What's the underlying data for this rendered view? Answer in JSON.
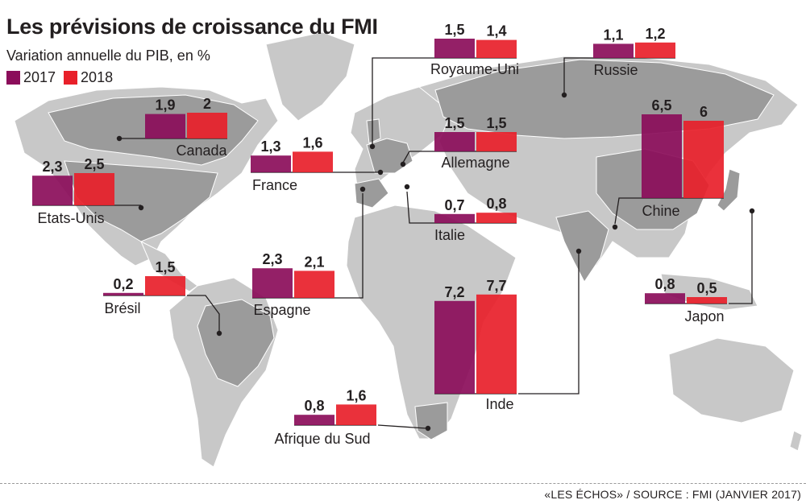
{
  "title": "Les prévisions de croissance du FMI",
  "subtitle": "Variation annuelle du PIB, en %",
  "legend": [
    {
      "label": "2017",
      "color": "#8b0d5a"
    },
    {
      "label": "2018",
      "color": "#e8202a"
    }
  ],
  "source": "«LES ÉCHOS» / SOURCE : FMI (JANVIER 2017)",
  "colors": {
    "y2017": "#8b0d5a",
    "y2018": "#e8202a",
    "ocean": "#ffffff",
    "land": "#c8c8c8",
    "highlight": "#9b9b9b"
  },
  "chart_data": {
    "type": "bar",
    "title": "Les prévisions de croissance du FMI",
    "subtitle": "Variation annuelle du PIB, en %",
    "series_names": [
      "2017",
      "2018"
    ],
    "countries": [
      {
        "name": "Canada",
        "v2017": 1.9,
        "v2018": 2,
        "labels": [
          "1,9",
          "2"
        ]
      },
      {
        "name": "Etats-Unis",
        "v2017": 2.3,
        "v2018": 2.5,
        "labels": [
          "2,3",
          "2,5"
        ]
      },
      {
        "name": "France",
        "v2017": 1.3,
        "v2018": 1.6,
        "labels": [
          "1,3",
          "1,6"
        ]
      },
      {
        "name": "Royaume-Uni",
        "v2017": 1.5,
        "v2018": 1.4,
        "labels": [
          "1,5",
          "1,4"
        ]
      },
      {
        "name": "Russie",
        "v2017": 1.1,
        "v2018": 1.2,
        "labels": [
          "1,1",
          "1,2"
        ]
      },
      {
        "name": "Allemagne",
        "v2017": 1.5,
        "v2018": 1.5,
        "labels": [
          "1,5",
          "1,5"
        ]
      },
      {
        "name": "Chine",
        "v2017": 6.5,
        "v2018": 6,
        "labels": [
          "6,5",
          "6"
        ]
      },
      {
        "name": "Italie",
        "v2017": 0.7,
        "v2018": 0.8,
        "labels": [
          "0,7",
          "0,8"
        ]
      },
      {
        "name": "Espagne",
        "v2017": 2.3,
        "v2018": 2.1,
        "labels": [
          "2,3",
          "2,1"
        ]
      },
      {
        "name": "Brésil",
        "v2017": 0.2,
        "v2018": 1.5,
        "labels": [
          "0,2",
          "1,5"
        ]
      },
      {
        "name": "Inde",
        "v2017": 7.2,
        "v2018": 7.7,
        "labels": [
          "7,2",
          "7,7"
        ]
      },
      {
        "name": "Japon",
        "v2017": 0.8,
        "v2018": 0.5,
        "labels": [
          "0,8",
          "0,5"
        ]
      },
      {
        "name": "Afrique du Sud",
        "v2017": 0.8,
        "v2018": 1.6,
        "labels": [
          "0,8",
          "1,6"
        ]
      }
    ]
  }
}
